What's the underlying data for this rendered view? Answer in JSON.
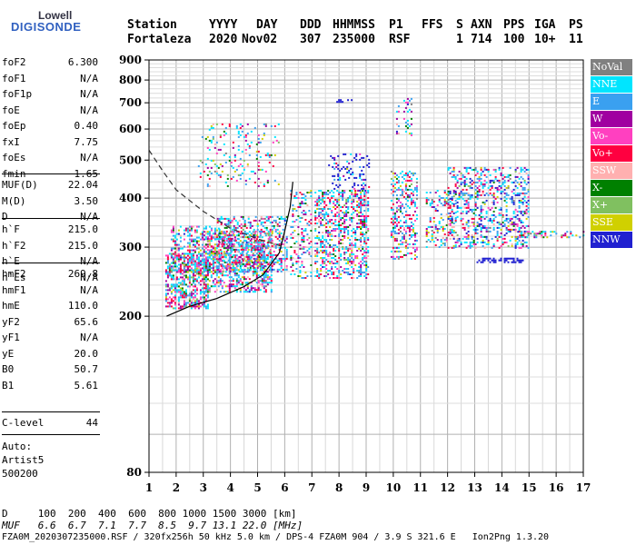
{
  "logo": {
    "line1": "Lowell",
    "line2": "DIGISONDE"
  },
  "header": {
    "labels": [
      "Station",
      "YYYY",
      "DAY",
      "DDD",
      "HHMMSS",
      "P1",
      "FFS",
      "S",
      "AXN",
      "PPS",
      "IGA",
      "PS"
    ],
    "values": [
      "Fortaleza",
      "2020",
      "Nov02",
      "307",
      "235000",
      "RSF",
      "1",
      "714",
      "100",
      "10+",
      "11"
    ]
  },
  "params_group1": [
    {
      "name": "foF2",
      "value": "6.300"
    },
    {
      "name": "foF1",
      "value": "N/A"
    },
    {
      "name": "foF1p",
      "value": "N/A"
    },
    {
      "name": "foE",
      "value": "N/A"
    },
    {
      "name": "foEp",
      "value": "0.40"
    },
    {
      "name": "fxI",
      "value": "7.75"
    },
    {
      "name": "foEs",
      "value": "N/A"
    },
    {
      "name": "fmin",
      "value": "1.65"
    }
  ],
  "params_group2": [
    {
      "name": "MUF(D)",
      "value": "22.04"
    },
    {
      "name": "M(D)",
      "value": "3.50"
    },
    {
      "name": "D",
      "value": "N/A"
    }
  ],
  "params_group3": [
    {
      "name": "h`F",
      "value": "215.0"
    },
    {
      "name": "h`F2",
      "value": "215.0"
    },
    {
      "name": "h`E",
      "value": "N/A"
    },
    {
      "name": "h`Es",
      "value": "N/A"
    }
  ],
  "params_group4": [
    {
      "name": "hmF2",
      "value": "269.8"
    },
    {
      "name": "hmF1",
      "value": "N/A"
    },
    {
      "name": "hmE",
      "value": "110.0"
    },
    {
      "name": "yF2",
      "value": "65.6"
    },
    {
      "name": "yF1",
      "value": "N/A"
    },
    {
      "name": "yE",
      "value": "20.0"
    },
    {
      "name": "B0",
      "value": "50.7"
    },
    {
      "name": "B1",
      "value": "5.61"
    }
  ],
  "params_group5": [
    {
      "name": "C-level",
      "value": "44"
    }
  ],
  "auto": {
    "line1": "Auto:",
    "line2": "Artist5",
    "line3": "500200"
  },
  "legend": [
    {
      "label": "NoVal",
      "color": "#808080"
    },
    {
      "label": "NNE",
      "color": "#00e5ff"
    },
    {
      "label": "E",
      "color": "#3aa0f0"
    },
    {
      "label": "W",
      "color": "#a000a0"
    },
    {
      "label": "Vo-",
      "color": "#ff40c0"
    },
    {
      "label": "Vo+",
      "color": "#ff0040"
    },
    {
      "label": "SSW",
      "color": "#ffb0b0"
    },
    {
      "label": "X-",
      "color": "#008000"
    },
    {
      "label": "X+",
      "color": "#80c060"
    },
    {
      "label": "SSE",
      "color": "#d0d000"
    },
    {
      "label": "NNW",
      "color": "#2020d0"
    }
  ],
  "bottom": {
    "d_line": "D     100  200  400  600  800 1000 1500 3000 [km]",
    "muf_line": "MUF   6.6  6.7  7.1  7.7  8.5  9.7 13.1 22.0 [MHz]",
    "footer": "FZA0M_2020307235000.RSF / 320fx256h 50 kHz 5.0 km / DPS-4 FZA0M 904 / 3.9 S 321.6 E   Ion2Png 1.3.20"
  },
  "chart_data": {
    "type": "scatter",
    "xlabel": "",
    "ylabel": "",
    "xlim": [
      1,
      17
    ],
    "ylim": [
      80,
      900
    ],
    "x_ticks": [
      1,
      2,
      3,
      4,
      5,
      6,
      7,
      8,
      9,
      10,
      11,
      12,
      13,
      14,
      15,
      16,
      17
    ],
    "y_ticks": [
      80,
      200,
      300,
      400,
      500,
      600,
      700,
      800,
      900
    ],
    "y_scale": "log",
    "grid": true,
    "echo_clusters": [
      {
        "x": [
          1.6,
          3.2
        ],
        "y": [
          210,
          290
        ],
        "density": 0.55
      },
      {
        "x": [
          1.8,
          3.6
        ],
        "y": [
          260,
          340
        ],
        "density": 0.35
      },
      {
        "x": [
          3.0,
          5.5
        ],
        "y": [
          230,
          330
        ],
        "density": 0.5
      },
      {
        "x": [
          3.5,
          6.1
        ],
        "y": [
          260,
          360
        ],
        "density": 0.35
      },
      {
        "x": [
          2.8,
          5.8
        ],
        "y": [
          430,
          620
        ],
        "density": 0.12
      },
      {
        "x": [
          6.2,
          7.0
        ],
        "y": [
          250,
          420
        ],
        "density": 0.25
      },
      {
        "x": [
          7.1,
          9.1
        ],
        "y": [
          250,
          420
        ],
        "density": 0.4
      },
      {
        "x": [
          7.6,
          9.1
        ],
        "y": [
          420,
          520
        ],
        "density": 0.2
      },
      {
        "x": [
          7.9,
          8.5
        ],
        "y": [
          705,
          715
        ],
        "density": 0.5
      },
      {
        "x": [
          9.9,
          10.9
        ],
        "y": [
          280,
          470
        ],
        "density": 0.35
      },
      {
        "x": [
          10.1,
          10.7
        ],
        "y": [
          580,
          720
        ],
        "density": 0.18
      },
      {
        "x": [
          11.2,
          12.3
        ],
        "y": [
          300,
          420
        ],
        "density": 0.25
      },
      {
        "x": [
          12.0,
          15.0
        ],
        "y": [
          300,
          480
        ],
        "density": 0.3
      },
      {
        "x": [
          13.0,
          14.8
        ],
        "y": [
          275,
          282
        ],
        "density": 0.6
      },
      {
        "x": [
          14.5,
          17.0
        ],
        "y": [
          318,
          330
        ],
        "density": 0.35
      }
    ],
    "profile_curve": {
      "x": [
        1.65,
        2.5,
        3.5,
        4.5,
        5.2,
        5.8,
        6.0,
        6.2,
        6.3
      ],
      "y": [
        200,
        212,
        222,
        238,
        255,
        290,
        330,
        380,
        440
      ]
    },
    "dashed_curve": {
      "x": [
        1.0,
        1.5,
        2.0,
        3.0,
        4.0,
        5.0,
        6.0
      ],
      "y": [
        530,
        470,
        420,
        370,
        335,
        315,
        300
      ]
    }
  }
}
